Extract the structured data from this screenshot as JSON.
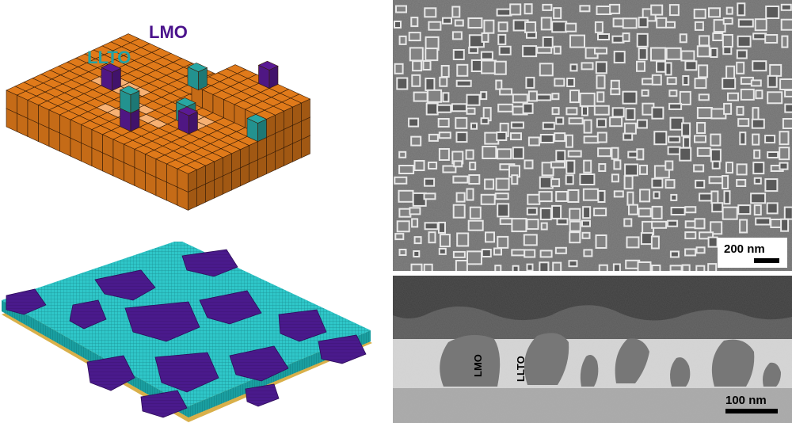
{
  "model_panel": {
    "lmo_label": "LMO",
    "llto_label": "LLTO",
    "colors": {
      "substrate_top": "#e07a1a",
      "substrate_light": "#f7b173",
      "lmo": "#5a1a95",
      "llto": "#28a6a3"
    }
  },
  "simulation_panel": {
    "colors": {
      "matrix": "#35d6d6",
      "lmo": "#4a1a8c",
      "base": "#d9b04a"
    }
  },
  "sem_top": {
    "scale_bar_label": "200 nm"
  },
  "sem_cross": {
    "lmo_label": "LMO",
    "llto_label": "LLTO",
    "scale_bar_label": "100 nm"
  }
}
